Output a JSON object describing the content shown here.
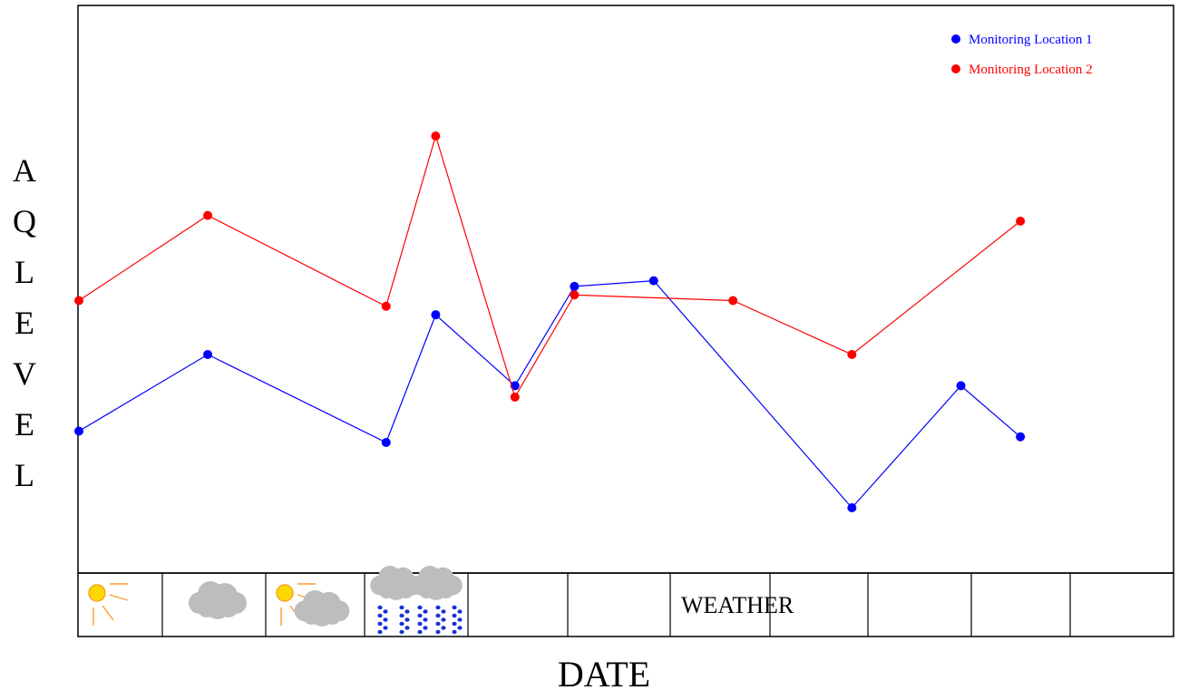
{
  "chart_data": {
    "type": "line",
    "title": "",
    "xlabel": "DATE",
    "ylabel": "AQ LEVEL",
    "ylim": [
      0,
      100
    ],
    "x": [
      0,
      1.3,
      3.1,
      3.6,
      4.4,
      5.0,
      5.8,
      6.6,
      7.8,
      8.9,
      9.5,
      10.3,
      11.0
    ],
    "xlim": [
      0,
      11
    ],
    "grid": false,
    "legend_position": "top-right",
    "series": [
      {
        "name": "Monitoring Location 1",
        "color": "#0000ff",
        "points": [
          [
            0,
            25
          ],
          [
            1.3,
            38.5
          ],
          [
            3.1,
            23
          ],
          [
            3.6,
            45.5
          ],
          [
            4.4,
            33
          ],
          [
            5.0,
            50.5
          ],
          [
            5.8,
            51.5
          ],
          [
            7.8,
            11.5
          ],
          [
            8.9,
            33
          ],
          [
            9.5,
            24
          ]
        ]
      },
      {
        "name": "Monitoring Location 2",
        "color": "#ff0000",
        "points": [
          [
            0,
            48
          ],
          [
            1.3,
            63
          ],
          [
            3.1,
            47
          ],
          [
            3.6,
            77
          ],
          [
            4.4,
            31
          ],
          [
            5.0,
            49
          ],
          [
            6.6,
            48
          ],
          [
            7.8,
            38.5
          ],
          [
            9.5,
            62
          ]
        ]
      }
    ]
  },
  "weather": {
    "label": "WEATHER",
    "cells": [
      {
        "icon": "sun-icon"
      },
      {
        "icon": "cloud-icon"
      },
      {
        "icon": "sun-cloud-icon"
      },
      {
        "icon": "rain-icon"
      },
      {
        "icon": ""
      },
      {
        "icon": ""
      },
      {
        "icon": ""
      },
      {
        "icon": ""
      },
      {
        "icon": ""
      },
      {
        "icon": ""
      },
      {
        "icon": ""
      }
    ]
  }
}
